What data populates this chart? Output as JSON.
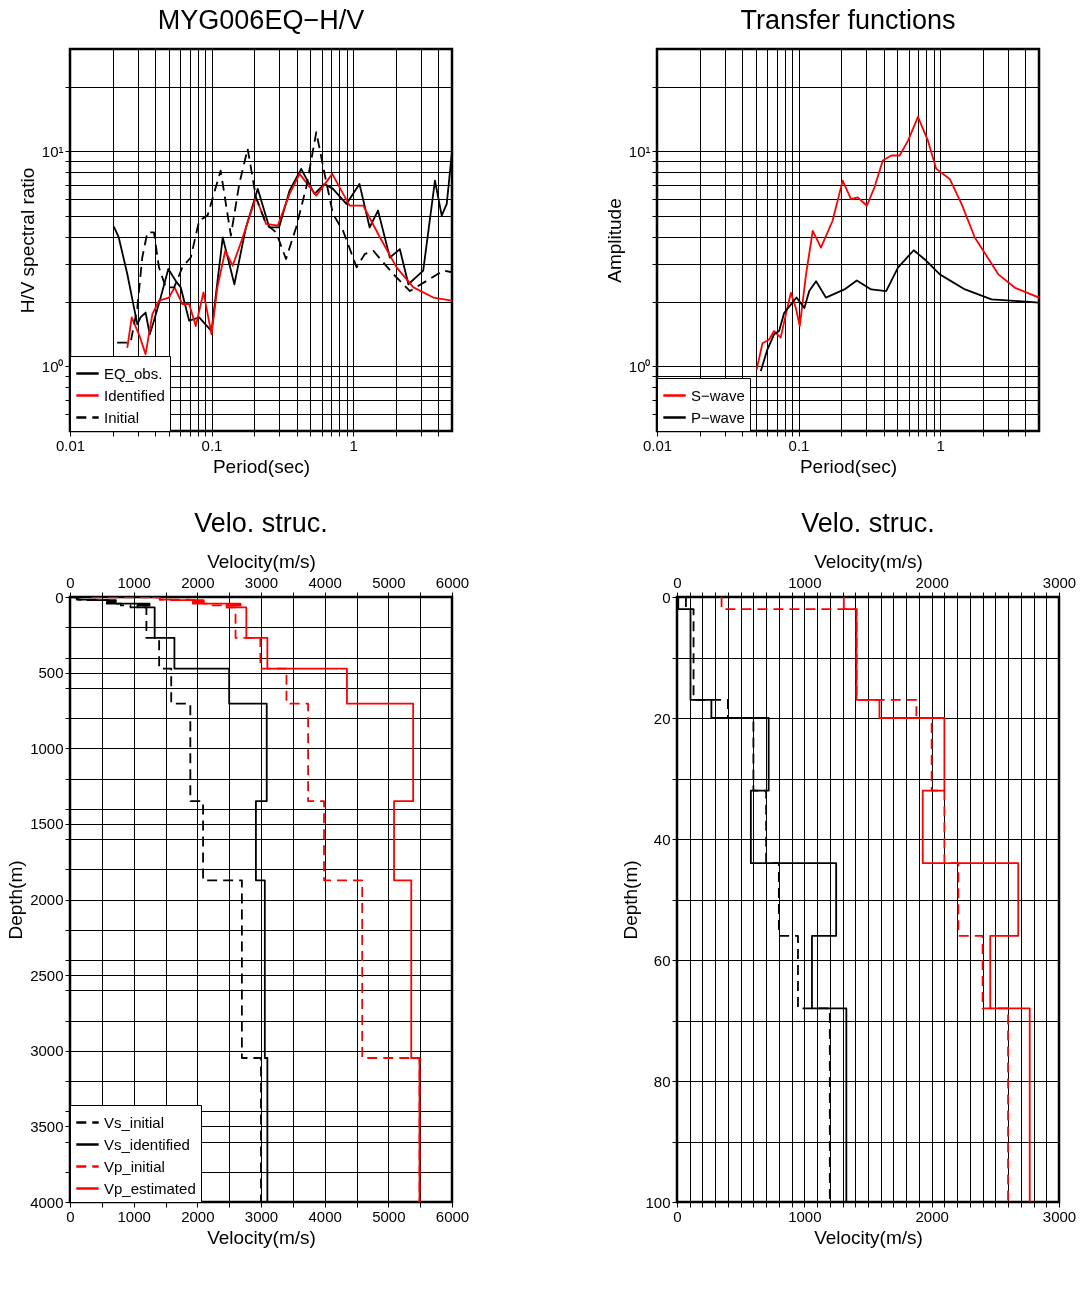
{
  "chart_data": [
    {
      "type": "line",
      "title": "MYG006EQ−H/V",
      "xlabel": "Period(sec)",
      "ylabel": "H/V spectral ratio",
      "log": "xy",
      "grid": true,
      "legend": "bottom left",
      "xlim": [
        0.01,
        5
      ],
      "ylim": [
        0.5,
        30
      ],
      "xticks": [
        0.01,
        {
          "value": 0.02,
          "label": null
        },
        {
          "value": 0.03,
          "label": null
        },
        {
          "value": 0.04,
          "label": null
        },
        {
          "value": 0.05,
          "label": null
        },
        {
          "value": 0.06,
          "label": null
        },
        {
          "value": 0.07,
          "label": null
        },
        {
          "value": 0.08,
          "label": null
        },
        {
          "value": 0.09,
          "label": null
        },
        0.1,
        {
          "value": 0.2,
          "label": null
        },
        {
          "value": 0.3,
          "label": null
        },
        {
          "value": 0.4,
          "label": null
        },
        {
          "value": 0.5,
          "label": null
        },
        {
          "value": 0.6,
          "label": null
        },
        {
          "value": 0.7,
          "label": null
        },
        {
          "value": 0.8,
          "label": null
        },
        {
          "value": 0.9,
          "label": null
        },
        1,
        {
          "value": 2,
          "label": null
        },
        {
          "value": 3,
          "label": null
        },
        {
          "value": 4,
          "label": null
        }
      ],
      "yticks": [
        {
          "value": 0.6,
          "label": null
        },
        {
          "value": 0.7,
          "label": null
        },
        {
          "value": 0.8,
          "label": null
        },
        {
          "value": 0.9,
          "label": null
        },
        {
          "value": 1,
          "label": "10⁰"
        },
        {
          "value": 2,
          "label": null
        },
        {
          "value": 3,
          "label": null
        },
        {
          "value": 4,
          "label": null
        },
        {
          "value": 5,
          "label": null
        },
        {
          "value": 6,
          "label": null
        },
        {
          "value": 7,
          "label": null
        },
        {
          "value": 8,
          "label": null
        },
        {
          "value": 9,
          "label": null
        },
        {
          "value": 10,
          "label": "10¹"
        },
        {
          "value": 20,
          "label": null
        }
      ],
      "series": [
        {
          "name": "EQ_obs.",
          "color": "#000000",
          "line_style": "solid",
          "x": [
            0.0204,
            0.0221,
            0.0254,
            0.0283,
            0.0299,
            0.0315,
            0.0342,
            0.0366,
            0.0392,
            0.0437,
            0.0495,
            0.0558,
            0.0606,
            0.0695,
            0.0818,
            0.1,
            0.12,
            0.145,
            0.175,
            0.212,
            0.256,
            0.3,
            0.356,
            0.43,
            0.534,
            0.629,
            0.721,
            0.897,
            1.11,
            1.31,
            1.5,
            1.82,
            2.14,
            2.46,
            3.13,
            3.79,
            4.23,
            4.59,
            5.0
          ],
          "values": [
            4.47,
            3.98,
            2.69,
            1.88,
            1.57,
            1.69,
            1.78,
            1.41,
            1.63,
            2.09,
            2.84,
            2.5,
            2.33,
            1.63,
            1.69,
            1.46,
            3.98,
            2.41,
            4.43,
            6.7,
            4.43,
            4.43,
            6.58,
            8.3,
            6.35,
            7.06,
            6.7,
            5.7,
            7.06,
            4.43,
            5.31,
            3.21,
            3.51,
            2.41,
            2.79,
            7.32,
            5.03,
            5.7,
            10
          ]
        },
        {
          "name": "Identified",
          "color": "#ff0000",
          "line_style": "solid",
          "x": [
            0.0254,
            0.0273,
            0.0307,
            0.0342,
            0.0382,
            0.0425,
            0.0501,
            0.0548,
            0.0622,
            0.0695,
            0.0774,
            0.0877,
            0.1,
            0.11,
            0.125,
            0.141,
            0.166,
            0.206,
            0.243,
            0.294,
            0.356,
            0.419,
            0.55,
            0.713,
            0.945,
            1.18,
            1.55,
            2.03,
            2.67,
            3.69,
            5.0
          ],
          "values": [
            1.22,
            1.69,
            1.41,
            1.14,
            1.75,
            2.02,
            2.09,
            2.33,
            1.95,
            1.95,
            1.54,
            2.21,
            1.41,
            2.33,
            3.45,
            2.94,
            3.98,
            6.12,
            4.6,
            4.52,
            6.35,
            7.87,
            6.23,
            7.87,
            5.6,
            5.6,
            3.98,
            2.89,
            2.33,
            2.09,
            2.02
          ]
        },
        {
          "name": "Initial",
          "color": "#000000",
          "line_style": "dashed",
          "x": [
            0.0215,
            0.0268,
            0.0299,
            0.0324,
            0.0352,
            0.0392,
            0.0425,
            0.0475,
            0.0544,
            0.0622,
            0.0713,
            0.0818,
            0.0937,
            0.116,
            0.137,
            0.157,
            0.18,
            0.206,
            0.243,
            0.286,
            0.336,
            0.396,
            0.467,
            0.55,
            0.629,
            0.721,
            0.849,
            1.06,
            1.21,
            1.39,
            1.92,
            2.52,
            3.31,
            4.34,
            5.0
          ],
          "values": [
            1.29,
            1.29,
            1.88,
            3.21,
            4.2,
            4.2,
            2.89,
            2.33,
            2.33,
            2.89,
            3.21,
            4.77,
            5.03,
            8.15,
            4.06,
            7.06,
            10.3,
            6.12,
            4.6,
            4.2,
            3.16,
            4.43,
            6.82,
            12.3,
            7.87,
            5.12,
            4.28,
            2.89,
            3.33,
            3.45,
            2.69,
            2.24,
            2.5,
            2.79,
            2.74
          ]
        }
      ]
    },
    {
      "type": "line",
      "title": "Transfer functions",
      "xlabel": "Period(sec)",
      "ylabel": "Amplitude",
      "log": "xy",
      "grid": true,
      "legend": "bottom left",
      "xlim": [
        0.01,
        5
      ],
      "ylim": [
        0.5,
        30
      ],
      "xticks": [
        0.01,
        {
          "value": 0.02,
          "label": null
        },
        {
          "value": 0.03,
          "label": null
        },
        {
          "value": 0.04,
          "label": null
        },
        {
          "value": 0.05,
          "label": null
        },
        {
          "value": 0.06,
          "label": null
        },
        {
          "value": 0.07,
          "label": null
        },
        {
          "value": 0.08,
          "label": null
        },
        {
          "value": 0.09,
          "label": null
        },
        0.1,
        {
          "value": 0.2,
          "label": null
        },
        {
          "value": 0.3,
          "label": null
        },
        {
          "value": 0.4,
          "label": null
        },
        {
          "value": 0.5,
          "label": null
        },
        {
          "value": 0.6,
          "label": null
        },
        {
          "value": 0.7,
          "label": null
        },
        {
          "value": 0.8,
          "label": null
        },
        {
          "value": 0.9,
          "label": null
        },
        1,
        {
          "value": 2,
          "label": null
        },
        {
          "value": 3,
          "label": null
        },
        {
          "value": 4,
          "label": null
        }
      ],
      "yticks": [
        {
          "value": 0.6,
          "label": null
        },
        {
          "value": 0.7,
          "label": null
        },
        {
          "value": 0.8,
          "label": null
        },
        {
          "value": 0.9,
          "label": null
        },
        {
          "value": 1,
          "label": "10⁰"
        },
        {
          "value": 2,
          "label": null
        },
        {
          "value": 3,
          "label": null
        },
        {
          "value": 4,
          "label": null
        },
        {
          "value": 5,
          "label": null
        },
        {
          "value": 6,
          "label": null
        },
        {
          "value": 7,
          "label": null
        },
        {
          "value": 8,
          "label": null
        },
        {
          "value": 9,
          "label": null
        },
        {
          "value": 10,
          "label": "10¹"
        },
        {
          "value": 20,
          "label": null
        }
      ],
      "series": [
        {
          "name": "S−wave",
          "color": "#ff0000",
          "line_style": "solid",
          "x": [
            0.0506,
            0.0556,
            0.0618,
            0.0672,
            0.0748,
            0.0813,
            0.0883,
            0.0957,
            0.102,
            0.113,
            0.126,
            0.144,
            0.174,
            0.205,
            0.235,
            0.262,
            0.304,
            0.344,
            0.394,
            0.452,
            0.518,
            0.593,
            0.698,
            0.822,
            0.94,
            1.17,
            1.42,
            1.76,
            2.58,
            3.39,
            5.0
          ],
          "values": [
            0.965,
            1.28,
            1.33,
            1.46,
            1.36,
            1.74,
            2.2,
            1.87,
            1.54,
            2.68,
            4.27,
            3.57,
            4.76,
            7.32,
            6.01,
            6.12,
            5.59,
            6.81,
            9.08,
            9.58,
            9.58,
            11.2,
            14.5,
            11.2,
            8.3,
            7.45,
            5.69,
            3.98,
            2.68,
            2.32,
            2.09
          ]
        },
        {
          "name": "P−wave",
          "color": "#000000",
          "line_style": "solid",
          "x": [
            0.0541,
            0.0603,
            0.0672,
            0.0729,
            0.0791,
            0.0968,
            0.11,
            0.119,
            0.133,
            0.156,
            0.211,
            0.258,
            0.326,
            0.416,
            0.504,
            0.651,
            0.8,
            0.996,
            1.5,
            2.31,
            5.0
          ],
          "values": [
            0.95,
            1.2,
            1.41,
            1.46,
            1.77,
            2.09,
            1.87,
            2.24,
            2.49,
            2.09,
            2.28,
            2.51,
            2.28,
            2.24,
            2.88,
            3.47,
            3.1,
            2.68,
            2.28,
            2.05,
            1.98
          ]
        }
      ]
    },
    {
      "type": "line",
      "title": "Velo. struc.",
      "xlabel": "Velocity(m/s)",
      "x2label": "Velocity(m/s)",
      "ylabel": "Depth(m)",
      "grid": true,
      "legend": "bottom left",
      "xlim": [
        0,
        6000
      ],
      "x2lim": [
        0,
        6000
      ],
      "ylim": [
        4000,
        0
      ],
      "xticks": [
        0,
        {
          "value": 500,
          "label": null
        },
        1000,
        {
          "value": 1500,
          "label": null
        },
        2000,
        {
          "value": 2500,
          "label": null
        },
        3000,
        {
          "value": 3500,
          "label": null
        },
        4000,
        {
          "value": 4500,
          "label": null
        },
        5000,
        {
          "value": 5500,
          "label": null
        },
        6000
      ],
      "x2ticks": [
        0,
        {
          "value": 500,
          "label": null
        },
        1000,
        {
          "value": 1500,
          "label": null
        },
        2000,
        {
          "value": 2500,
          "label": null
        },
        3000,
        {
          "value": 3500,
          "label": null
        },
        4000,
        {
          "value": 4500,
          "label": null
        },
        5000,
        {
          "value": 5500,
          "label": null
        },
        6000
      ],
      "yticks": [
        0,
        {
          "value": 200,
          "label": null
        },
        {
          "value": 400,
          "label": null
        },
        500,
        {
          "value": 600,
          "label": null
        },
        {
          "value": 800,
          "label": null
        },
        1000,
        {
          "value": 1200,
          "label": null
        },
        {
          "value": 1400,
          "label": null
        },
        1500,
        {
          "value": 1600,
          "label": null
        },
        {
          "value": 1800,
          "label": null
        },
        2000,
        {
          "value": 2200,
          "label": null
        },
        {
          "value": 2400,
          "label": null
        },
        2500,
        {
          "value": 2600,
          "label": null
        },
        {
          "value": 2800,
          "label": null
        },
        3000,
        {
          "value": 3200,
          "label": null
        },
        {
          "value": 3400,
          "label": null
        },
        3500,
        {
          "value": 3600,
          "label": null
        },
        {
          "value": 3800,
          "label": null
        },
        4000
      ],
      "series": [
        {
          "name": "Vs_initial",
          "color": "#000000",
          "line_style": "dashed",
          "x": [
            70,
            70,
            130,
            130,
            400,
            400,
            600,
            600,
            700,
            700,
            800,
            800,
            950,
            950,
            1200,
            1200,
            1400,
            1400,
            1590,
            1590,
            1890,
            1890,
            2090,
            2090,
            2700,
            2700,
            3000,
            3000
          ],
          "values": [
            0,
            2,
            2,
            17,
            17,
            20,
            20,
            32,
            32,
            44,
            44,
            56,
            56,
            68,
            68,
            270,
            270,
            473,
            473,
            705,
            705,
            1350,
            1350,
            1873,
            1873,
            3048,
            3048,
            4000
          ]
        },
        {
          "name": "Vs_identified",
          "color": "#000000",
          "line_style": "solid",
          "x": [
            10,
            10,
            106,
            106,
            270,
            270,
            720,
            720,
            580,
            580,
            1250,
            1250,
            1060,
            1060,
            1330,
            1330,
            1640,
            1640,
            2500,
            2500,
            3090,
            3090,
            2920,
            2920,
            3060,
            3060,
            3100,
            3100
          ],
          "values": [
            0,
            2,
            2,
            17,
            17,
            20,
            20,
            32,
            32,
            44,
            44,
            56,
            56,
            68,
            68,
            270,
            270,
            473,
            473,
            705,
            705,
            1350,
            1350,
            1873,
            1873,
            3048,
            3048,
            4000
          ]
        },
        {
          "name": "Vp_initial",
          "color": "#ff0000",
          "line_style": "dashed",
          "x": [
            350,
            350,
            1410,
            1410,
            1880,
            1880,
            2000,
            2000,
            2100,
            2100,
            2210,
            2210,
            2400,
            2400,
            2600,
            2600,
            2990,
            2990,
            3400,
            3400,
            3740,
            3740,
            3990,
            3990,
            4590,
            4590,
            5490,
            5490
          ],
          "values": [
            0,
            2,
            2,
            17,
            17,
            20,
            20,
            32,
            32,
            44,
            44,
            56,
            56,
            68,
            68,
            270,
            270,
            473,
            473,
            705,
            705,
            1350,
            1350,
            1873,
            1873,
            3048,
            3048,
            4000
          ]
        },
        {
          "name": "Vp_estimated",
          "color": "#ff0000",
          "line_style": "solid",
          "x": [
            1310,
            1310,
            1410,
            1410,
            1590,
            1590,
            2100,
            2100,
            1930,
            1930,
            2680,
            2680,
            2460,
            2460,
            2770,
            2770,
            3100,
            3100,
            4350,
            4350,
            5390,
            5390,
            5090,
            5090,
            5360,
            5360,
            5490,
            5490
          ],
          "values": [
            0,
            2,
            2,
            17,
            17,
            20,
            20,
            32,
            32,
            44,
            44,
            56,
            56,
            68,
            68,
            270,
            270,
            473,
            473,
            705,
            705,
            1350,
            1350,
            1873,
            1873,
            3048,
            3048,
            4000
          ]
        }
      ]
    },
    {
      "type": "line",
      "title": "Velo. struc.",
      "xlabel": "Velocity(m/s)",
      "x2label": "Velocity(m/s)",
      "ylabel": "Depth(m)",
      "grid": true,
      "xlim": [
        0,
        3000
      ],
      "x2lim": [
        0,
        3000
      ],
      "ylim": [
        100,
        0
      ],
      "xticks": [
        0,
        {
          "value": 100,
          "label": null
        },
        {
          "value": 200,
          "label": null
        },
        {
          "value": 300,
          "label": null
        },
        {
          "value": 400,
          "label": null
        },
        {
          "value": 500,
          "label": null
        },
        {
          "value": 600,
          "label": null
        },
        {
          "value": 700,
          "label": null
        },
        {
          "value": 800,
          "label": null
        },
        {
          "value": 900,
          "label": null
        },
        1000,
        {
          "value": 1100,
          "label": null
        },
        {
          "value": 1200,
          "label": null
        },
        {
          "value": 1300,
          "label": null
        },
        {
          "value": 1400,
          "label": null
        },
        {
          "value": 1500,
          "label": null
        },
        {
          "value": 1600,
          "label": null
        },
        {
          "value": 1700,
          "label": null
        },
        {
          "value": 1800,
          "label": null
        },
        {
          "value": 1900,
          "label": null
        },
        2000,
        {
          "value": 2100,
          "label": null
        },
        {
          "value": 2200,
          "label": null
        },
        {
          "value": 2300,
          "label": null
        },
        {
          "value": 2400,
          "label": null
        },
        {
          "value": 2500,
          "label": null
        },
        {
          "value": 2600,
          "label": null
        },
        {
          "value": 2700,
          "label": null
        },
        {
          "value": 2800,
          "label": null
        },
        {
          "value": 2900,
          "label": null
        },
        3000
      ],
      "x2ticks": [
        0,
        {
          "value": 100,
          "label": null
        },
        {
          "value": 200,
          "label": null
        },
        {
          "value": 300,
          "label": null
        },
        {
          "value": 400,
          "label": null
        },
        {
          "value": 500,
          "label": null
        },
        {
          "value": 600,
          "label": null
        },
        {
          "value": 700,
          "label": null
        },
        {
          "value": 800,
          "label": null
        },
        {
          "value": 900,
          "label": null
        },
        1000,
        {
          "value": 1100,
          "label": null
        },
        {
          "value": 1200,
          "label": null
        },
        {
          "value": 1300,
          "label": null
        },
        {
          "value": 1400,
          "label": null
        },
        {
          "value": 1500,
          "label": null
        },
        {
          "value": 1600,
          "label": null
        },
        {
          "value": 1700,
          "label": null
        },
        {
          "value": 1800,
          "label": null
        },
        {
          "value": 1900,
          "label": null
        },
        2000,
        {
          "value": 2100,
          "label": null
        },
        {
          "value": 2200,
          "label": null
        },
        {
          "value": 2300,
          "label": null
        },
        {
          "value": 2400,
          "label": null
        },
        {
          "value": 2500,
          "label": null
        },
        {
          "value": 2600,
          "label": null
        },
        {
          "value": 2700,
          "label": null
        },
        {
          "value": 2800,
          "label": null
        },
        {
          "value": 2900,
          "label": null
        },
        3000
      ],
      "yticks": [
        0,
        {
          "value": 10,
          "label": null
        },
        20,
        {
          "value": 30,
          "label": null
        },
        40,
        {
          "value": 50,
          "label": null
        },
        60,
        {
          "value": 70,
          "label": null
        },
        80,
        {
          "value": 90,
          "label": null
        },
        100
      ],
      "series": [
        {
          "color": "#000000",
          "line_style": "dashed",
          "x": [
            70,
            70,
            130,
            130,
            400,
            400,
            600,
            600,
            700,
            700,
            800,
            800,
            950,
            950,
            1200,
            1200
          ],
          "values": [
            0,
            2,
            2,
            17,
            17,
            20,
            20,
            32,
            32,
            44,
            44,
            56,
            56,
            68,
            68,
            100
          ]
        },
        {
          "color": "#000000",
          "line_style": "solid",
          "x": [
            10,
            10,
            106,
            106,
            270,
            270,
            720,
            720,
            580,
            580,
            1250,
            1250,
            1060,
            1060,
            1330,
            1330
          ],
          "values": [
            0,
            2,
            2,
            17,
            17,
            20,
            20,
            32,
            32,
            44,
            44,
            56,
            56,
            68,
            68,
            100
          ]
        },
        {
          "color": "#ff0000",
          "line_style": "dashed",
          "x": [
            350,
            350,
            1410,
            1410,
            1880,
            1880,
            2000,
            2000,
            2100,
            2100,
            2210,
            2210,
            2400,
            2400,
            2600,
            2600
          ],
          "values": [
            0,
            2,
            2,
            17,
            17,
            20,
            20,
            32,
            32,
            44,
            44,
            56,
            56,
            68,
            68,
            100
          ]
        },
        {
          "color": "#ff0000",
          "line_style": "solid",
          "x": [
            1310,
            1310,
            1410,
            1410,
            1590,
            1590,
            2100,
            2100,
            1930,
            1930,
            2680,
            2680,
            2460,
            2460,
            2770,
            2770
          ],
          "values": [
            0,
            2,
            2,
            17,
            17,
            20,
            20,
            32,
            32,
            44,
            44,
            56,
            56,
            68,
            68,
            100
          ]
        }
      ]
    }
  ]
}
